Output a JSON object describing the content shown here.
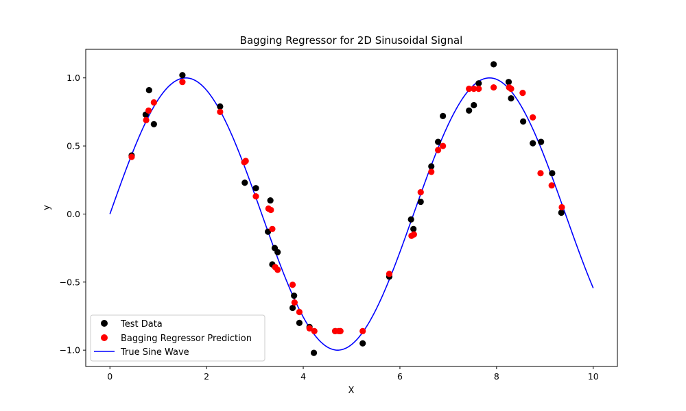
{
  "chart_data": {
    "type": "scatter",
    "title": "Bagging Regressor for 2D Sinusoidal Signal",
    "xlabel": "X",
    "ylabel": "y",
    "xlim": [
      -0.5,
      10.5
    ],
    "ylim": [
      -1.12,
      1.21
    ],
    "xticks": [
      0,
      2,
      4,
      6,
      8,
      10
    ],
    "xtick_labels": [
      "0",
      "2",
      "4",
      "6",
      "8",
      "10"
    ],
    "yticks": [
      -1.0,
      -0.5,
      0.0,
      0.5,
      1.0
    ],
    "ytick_labels": [
      "−1.0",
      "−0.5",
      "0.0",
      "0.5",
      "1.0"
    ],
    "grid": false,
    "legend_position": "lower-left",
    "series": [
      {
        "name": "Test Data",
        "kind": "scatter",
        "color": "#000000",
        "points": [
          [
            0.45,
            0.43
          ],
          [
            0.74,
            0.73
          ],
          [
            0.81,
            0.91
          ],
          [
            0.91,
            0.66
          ],
          [
            1.5,
            1.02
          ],
          [
            2.28,
            0.79
          ],
          [
            2.79,
            0.23
          ],
          [
            3.02,
            0.19
          ],
          [
            3.27,
            -0.13
          ],
          [
            3.32,
            0.1
          ],
          [
            3.36,
            -0.37
          ],
          [
            3.41,
            -0.25
          ],
          [
            3.47,
            -0.28
          ],
          [
            3.78,
            -0.69
          ],
          [
            3.81,
            -0.6
          ],
          [
            3.92,
            -0.8
          ],
          [
            4.13,
            -0.83
          ],
          [
            4.22,
            -1.02
          ],
          [
            4.66,
            -0.86
          ],
          [
            4.76,
            -0.86
          ],
          [
            5.23,
            -0.95
          ],
          [
            5.78,
            -0.46
          ],
          [
            6.23,
            -0.04
          ],
          [
            6.28,
            -0.11
          ],
          [
            6.43,
            0.09
          ],
          [
            6.65,
            0.35
          ],
          [
            6.79,
            0.53
          ],
          [
            6.89,
            0.72
          ],
          [
            7.43,
            0.76
          ],
          [
            7.53,
            0.8
          ],
          [
            7.63,
            0.96
          ],
          [
            7.94,
            1.1
          ],
          [
            8.25,
            0.97
          ],
          [
            8.3,
            0.85
          ],
          [
            8.55,
            0.68
          ],
          [
            8.75,
            0.52
          ],
          [
            8.92,
            0.53
          ],
          [
            9.15,
            0.3
          ],
          [
            9.34,
            0.01
          ]
        ]
      },
      {
        "name": "Bagging Regressor Prediction",
        "kind": "scatter",
        "color": "#ff0000",
        "points": [
          [
            0.45,
            0.42
          ],
          [
            0.75,
            0.69
          ],
          [
            0.8,
            0.76
          ],
          [
            0.91,
            0.82
          ],
          [
            1.5,
            0.97
          ],
          [
            2.28,
            0.75
          ],
          [
            2.78,
            0.38
          ],
          [
            2.81,
            0.39
          ],
          [
            3.02,
            0.13
          ],
          [
            3.28,
            0.04
          ],
          [
            3.33,
            0.03
          ],
          [
            3.36,
            -0.11
          ],
          [
            3.42,
            -0.39
          ],
          [
            3.47,
            -0.41
          ],
          [
            3.78,
            -0.52
          ],
          [
            3.82,
            -0.65
          ],
          [
            3.92,
            -0.72
          ],
          [
            4.13,
            -0.84
          ],
          [
            4.23,
            -0.86
          ],
          [
            4.66,
            -0.86
          ],
          [
            4.73,
            -0.86
          ],
          [
            4.77,
            -0.86
          ],
          [
            5.23,
            -0.86
          ],
          [
            5.78,
            -0.44
          ],
          [
            6.24,
            -0.16
          ],
          [
            6.29,
            -0.15
          ],
          [
            6.43,
            0.16
          ],
          [
            6.65,
            0.31
          ],
          [
            6.79,
            0.47
          ],
          [
            6.89,
            0.5
          ],
          [
            7.43,
            0.92
          ],
          [
            7.53,
            0.92
          ],
          [
            7.63,
            0.92
          ],
          [
            7.94,
            0.93
          ],
          [
            8.26,
            0.93
          ],
          [
            8.3,
            0.92
          ],
          [
            8.54,
            0.89
          ],
          [
            8.75,
            0.71
          ],
          [
            8.91,
            0.3
          ],
          [
            9.14,
            0.21
          ],
          [
            9.35,
            0.05
          ]
        ]
      },
      {
        "name": "True Sine Wave",
        "kind": "line",
        "color": "#0000ff",
        "function": "sin",
        "x_range": [
          0,
          10
        ]
      }
    ]
  }
}
